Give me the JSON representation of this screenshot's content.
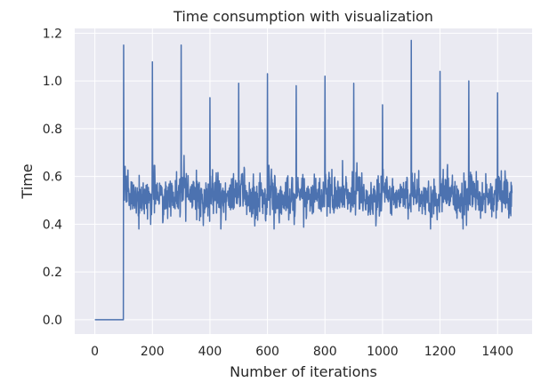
{
  "chart_data": {
    "type": "line",
    "title": "Time consumption with visualization",
    "xlabel": "Number of iterations",
    "ylabel": "Time",
    "xlim": [
      -70,
      1520
    ],
    "ylim": [
      -0.06,
      1.22
    ],
    "x_ticks": [
      0,
      200,
      400,
      600,
      800,
      1000,
      1200,
      1400
    ],
    "y_ticks": [
      0.0,
      0.2,
      0.4,
      0.6,
      0.8,
      1.0,
      1.2
    ],
    "x_tick_labels": [
      "0",
      "200",
      "400",
      "600",
      "800",
      "1000",
      "1200",
      "1400"
    ],
    "y_tick_labels": [
      "0.0",
      "0.2",
      "0.4",
      "0.6",
      "0.8",
      "1.0",
      "1.2"
    ],
    "grid": true,
    "style": {
      "background": "#eaeaf2",
      "grid_color": "#ffffff",
      "line_color": "#4c72b0"
    },
    "series": [
      {
        "baseline": {
          "x_start": 0,
          "x_end": 99,
          "value": 0.0
        },
        "noisy_segment": {
          "x_start": 100,
          "x_end": 1450,
          "mean": 0.51,
          "min": 0.38,
          "max": 0.7
        },
        "spikes": [
          {
            "x": 100,
            "y": 1.15
          },
          {
            "x": 200,
            "y": 1.08
          },
          {
            "x": 300,
            "y": 1.15
          },
          {
            "x": 400,
            "y": 0.93
          },
          {
            "x": 500,
            "y": 0.99
          },
          {
            "x": 600,
            "y": 1.03
          },
          {
            "x": 700,
            "y": 0.98
          },
          {
            "x": 800,
            "y": 1.02
          },
          {
            "x": 900,
            "y": 0.99
          },
          {
            "x": 1000,
            "y": 0.9
          },
          {
            "x": 1100,
            "y": 1.17
          },
          {
            "x": 1200,
            "y": 1.04
          },
          {
            "x": 1300,
            "y": 1.0
          },
          {
            "x": 1400,
            "y": 0.95
          }
        ]
      }
    ]
  }
}
